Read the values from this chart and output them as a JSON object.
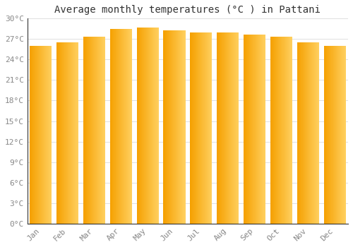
{
  "title": "Average monthly temperatures (°C ) in Pattani",
  "months": [
    "Jan",
    "Feb",
    "Mar",
    "Apr",
    "May",
    "Jun",
    "Jul",
    "Aug",
    "Sep",
    "Oct",
    "Nov",
    "Dec"
  ],
  "temperatures": [
    26.0,
    26.5,
    27.3,
    28.5,
    28.7,
    28.3,
    28.0,
    28.0,
    27.7,
    27.3,
    26.5,
    26.0
  ],
  "ylim": [
    0,
    30
  ],
  "ytick_values": [
    0,
    3,
    6,
    9,
    12,
    15,
    18,
    21,
    24,
    27,
    30
  ],
  "ytick_labels": [
    "0°C",
    "3°C",
    "6°C",
    "9°C",
    "12°C",
    "15°C",
    "18°C",
    "21°C",
    "24°C",
    "27°C",
    "30°C"
  ],
  "background_color": "#ffffff",
  "grid_color": "#e0e0e0",
  "title_fontsize": 10,
  "tick_fontsize": 8,
  "bar_left_color": "#F5A000",
  "bar_right_color": "#FFD060",
  "bar_width": 0.82
}
